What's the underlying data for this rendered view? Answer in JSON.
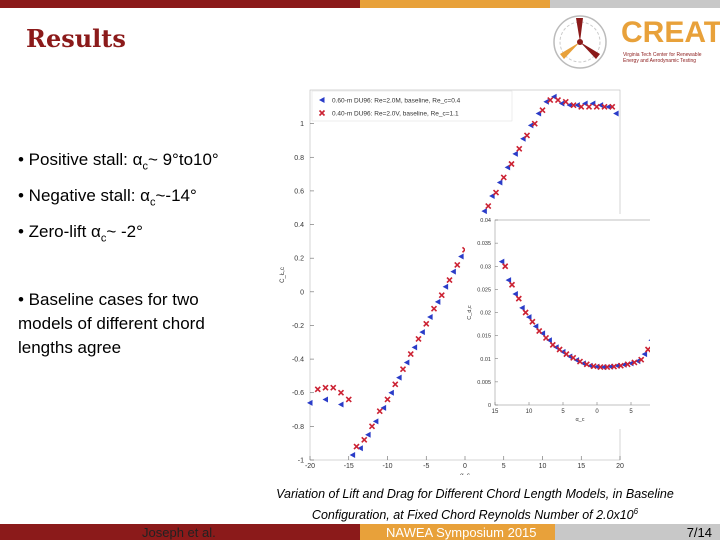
{
  "slide": {
    "title": "Results",
    "logo": {
      "word": "CREATe",
      "subtitle": "Virginia Tech Center for Renewable Energy and Aerodynamic Testing"
    },
    "bullets": [
      "• Positive stall: α",
      "• Negative stall: α",
      "• Zero-lift α",
      "• Baseline cases for two models of different chord lengths agree"
    ],
    "bullet_parts": {
      "pos_sub": "c",
      "pos_rest": "~ 9°to10°",
      "neg_sub": "c",
      "neg_rest": "~-14°",
      "zero_sub": "c",
      "zero_rest": "~ -2°"
    },
    "caption_line1": "Variation of Lift and Drag for Different Chord Length Models, in Baseline",
    "caption_line2": "Configuration, at Fixed Chord Reynolds Number of 2.0x10",
    "caption_sup": "6",
    "footer": {
      "author": "Joseph et al.",
      "event": "NAWEA Symposium 2015",
      "page": "7/14"
    }
  },
  "colors": {
    "brand_dark": "#8b1a1a",
    "brand_orange": "#e8a13a",
    "series1": "#2a3cc8",
    "series2": "#cc2233"
  },
  "chart_data": [
    {
      "type": "scatter",
      "xlabel": "α_c",
      "ylabel": "C_Ł,c",
      "xlim": [
        -20,
        20
      ],
      "ylim": [
        -1,
        1.2
      ],
      "xticks": [
        -20,
        -15,
        -10,
        -5,
        0,
        5,
        10,
        15,
        20
      ],
      "yticks": [
        -1,
        -0.8,
        -0.6,
        -0.4,
        -0.2,
        0,
        0.2,
        0.4,
        0.6,
        0.8,
        1
      ],
      "legend": "top-left",
      "series": [
        {
          "name": "0.60-m DU96: Re=2.0M, baseline, Re_c=0.4",
          "marker": "triangle",
          "x": [
            -20,
            -18,
            -16,
            -14.5,
            -13.5,
            -12.5,
            -11.5,
            -10.5,
            -9.5,
            -8.5,
            -7.5,
            -6.5,
            -5.5,
            -4.5,
            -3.5,
            -2.5,
            -1.5,
            -0.5,
            0.5,
            1.5,
            2.5,
            3.5,
            4.5,
            5.5,
            6.5,
            7.5,
            8.5,
            9.5,
            10.5,
            11.5,
            12.5,
            13.5,
            14.5,
            15.5,
            16.5,
            17.5,
            18.5,
            19.5
          ],
          "y": [
            -0.66,
            -0.64,
            -0.67,
            -0.97,
            -0.93,
            -0.85,
            -0.77,
            -0.69,
            -0.6,
            -0.51,
            -0.42,
            -0.33,
            -0.24,
            -0.15,
            -0.06,
            0.03,
            0.12,
            0.21,
            0.3,
            0.39,
            0.48,
            0.57,
            0.65,
            0.74,
            0.82,
            0.91,
            0.99,
            1.06,
            1.13,
            1.16,
            1.12,
            1.11,
            1.11,
            1.12,
            1.12,
            1.11,
            1.1,
            1.06
          ]
        },
        {
          "name": "0.40-m DU96: Re=2.0V, baseline, Re_c=1.1",
          "marker": "x",
          "x": [
            -19,
            -18,
            -17,
            -16,
            -15,
            -14,
            -13,
            -12,
            -11,
            -10,
            -9,
            -8,
            -7,
            -6,
            -5,
            -4,
            -3,
            -2,
            -1,
            0,
            1,
            2,
            3,
            4,
            5,
            6,
            7,
            8,
            9,
            10,
            11,
            12,
            13,
            14,
            15,
            16,
            17,
            18,
            19
          ],
          "y": [
            -0.58,
            -0.57,
            -0.57,
            -0.6,
            -0.64,
            -0.92,
            -0.88,
            -0.8,
            -0.71,
            -0.64,
            -0.55,
            -0.46,
            -0.37,
            -0.28,
            -0.19,
            -0.1,
            -0.02,
            0.07,
            0.16,
            0.25,
            0.33,
            0.42,
            0.51,
            0.59,
            0.68,
            0.76,
            0.85,
            0.93,
            1.0,
            1.08,
            1.14,
            1.14,
            1.13,
            1.11,
            1.1,
            1.1,
            1.1,
            1.1,
            1.1
          ]
        }
      ]
    },
    {
      "type": "scatter",
      "xlabel": "α_c",
      "ylabel": "C_d,c",
      "xlim": [
        -15,
        10
      ],
      "ylim": [
        0,
        0.04
      ],
      "xticks": [
        -15,
        -10,
        -5,
        0,
        5,
        10
      ],
      "xtick_labels": [
        "15",
        "10",
        "5",
        "0",
        "5",
        "10"
      ],
      "yticks": [
        0,
        0.005,
        0.01,
        0.015,
        0.02,
        0.025,
        0.03,
        0.035,
        0.04
      ],
      "ytick_labels": [
        "0",
        "0.005",
        "0.01",
        "0.015",
        "0.02",
        "0.025",
        "0.03",
        "0.035",
        "0.04"
      ],
      "series": [
        {
          "name": "0.60-m",
          "marker": "triangle",
          "x": [
            -14,
            -13,
            -12,
            -11,
            -10,
            -9,
            -8,
            -7,
            -6,
            -5,
            -4,
            -3,
            -2,
            -1,
            0,
            1,
            2,
            3,
            4,
            5,
            6,
            7,
            8,
            9
          ],
          "y": [
            0.031,
            0.027,
            0.024,
            0.021,
            0.019,
            0.017,
            0.0155,
            0.014,
            0.0125,
            0.0115,
            0.0105,
            0.0097,
            0.009,
            0.0085,
            0.0083,
            0.0082,
            0.0083,
            0.0085,
            0.0087,
            0.009,
            0.0095,
            0.011,
            0.014,
            0.02
          ]
        },
        {
          "name": "0.40-m",
          "marker": "x",
          "x": [
            -13.5,
            -12.5,
            -11.5,
            -10.5,
            -9.5,
            -8.5,
            -7.5,
            -6.5,
            -5.5,
            -4.5,
            -3.5,
            -2.5,
            -1.5,
            -0.5,
            0.5,
            1.5,
            2.5,
            3.5,
            4.5,
            5.5,
            6.5,
            7.5,
            8.5,
            9.5
          ],
          "y": [
            0.03,
            0.026,
            0.023,
            0.02,
            0.018,
            0.016,
            0.0145,
            0.013,
            0.012,
            0.011,
            0.0102,
            0.0094,
            0.0088,
            0.0084,
            0.0082,
            0.0082,
            0.0083,
            0.0085,
            0.0088,
            0.0092,
            0.0098,
            0.012,
            0.016,
            0.018
          ]
        }
      ]
    }
  ]
}
